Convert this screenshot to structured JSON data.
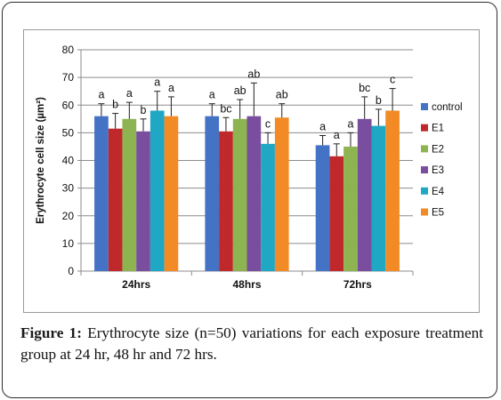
{
  "chart_data": {
    "type": "bar",
    "ylabel": "Erythrocyte cell size (µm²)",
    "xlabel": "",
    "ylim": [
      0,
      80
    ],
    "yticks": [
      0,
      10,
      20,
      30,
      40,
      50,
      60,
      70,
      80
    ],
    "grid": true,
    "legend_position": "right",
    "categories": [
      "24hrs",
      "48hrs",
      "72hrs"
    ],
    "series": [
      {
        "name": "control",
        "color": "#4472C4",
        "values": [
          56,
          56,
          45.5
        ],
        "errors": [
          4.5,
          4.5,
          3.5
        ],
        "sig": [
          "a",
          "a",
          "a"
        ]
      },
      {
        "name": "E1",
        "color": "#C0292B",
        "values": [
          51.5,
          50.5,
          41.5
        ],
        "errors": [
          5.5,
          5.0,
          4.5
        ],
        "sig": [
          "b",
          "bc",
          "a"
        ]
      },
      {
        "name": "E2",
        "color": "#8DB450",
        "values": [
          55,
          55,
          45
        ],
        "errors": [
          6,
          7,
          5
        ],
        "sig": [
          "a",
          "ab",
          "a"
        ]
      },
      {
        "name": "E3",
        "color": "#7A4E9E",
        "values": [
          50.5,
          56,
          55
        ],
        "errors": [
          4.5,
          12,
          8
        ],
        "sig": [
          "b",
          "ab",
          "bc"
        ]
      },
      {
        "name": "E4",
        "color": "#1FA7C4",
        "values": [
          58,
          46,
          52.5
        ],
        "errors": [
          7,
          4,
          6
        ],
        "sig": [
          "a",
          "c",
          "b"
        ]
      },
      {
        "name": "E5",
        "color": "#F28A26",
        "values": [
          56,
          55.5,
          58
        ],
        "errors": [
          7,
          5,
          8
        ],
        "sig": [
          "a",
          "ab",
          "c"
        ]
      }
    ]
  },
  "caption": {
    "label": "Figure 1:",
    "text": " Erythrocyte size (n=50) variations for each exposure treatment group at 24 hr, 48 hr and 72 hrs."
  }
}
